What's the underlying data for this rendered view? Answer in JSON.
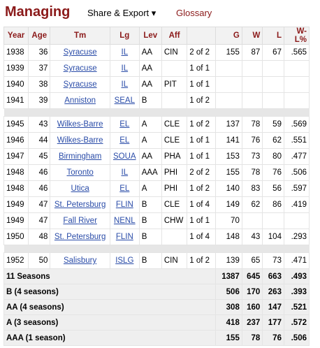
{
  "header": {
    "title": "Managing",
    "share_label": "Share & Export ▾",
    "glossary_label": "Glossary"
  },
  "columns": [
    "Year",
    "Age",
    "Tm",
    "Lg",
    "Lev",
    "Aff",
    "",
    "G",
    "W",
    "L",
    "W-L%"
  ],
  "rows": [
    [
      "1938",
      "36",
      "Syracuse",
      "IL",
      "AA",
      "CIN",
      "2 of 2",
      "155",
      "87",
      "67",
      ".565"
    ],
    [
      "1939",
      "37",
      "Syracuse",
      "IL",
      "AA",
      "",
      "1 of 1",
      "",
      "",
      "",
      ""
    ],
    [
      "1940",
      "38",
      "Syracuse",
      "IL",
      "AA",
      "PIT",
      "1 of 1",
      "",
      "",
      "",
      ""
    ],
    [
      "1941",
      "39",
      "Anniston",
      "SEAL",
      "B",
      "",
      "1 of 2",
      "",
      "",
      "",
      ""
    ],
    null,
    [
      "1945",
      "43",
      "Wilkes-Barre",
      "EL",
      "A",
      "CLE",
      "1 of 2",
      "137",
      "78",
      "59",
      ".569"
    ],
    [
      "1946",
      "44",
      "Wilkes-Barre",
      "EL",
      "A",
      "CLE",
      "1 of 1",
      "141",
      "76",
      "62",
      ".551"
    ],
    [
      "1947",
      "45",
      "Birmingham",
      "SOUA",
      "AA",
      "PHA",
      "1 of 1",
      "153",
      "73",
      "80",
      ".477"
    ],
    [
      "1948",
      "46",
      "Toronto",
      "IL",
      "AAA",
      "PHI",
      "2 of 2",
      "155",
      "78",
      "76",
      ".506"
    ],
    [
      "1948",
      "46",
      "Utica",
      "EL",
      "A",
      "PHI",
      "1 of 2",
      "140",
      "83",
      "56",
      ".597"
    ],
    [
      "1949",
      "47",
      "St. Petersburg",
      "FLIN",
      "B",
      "CLE",
      "1 of 4",
      "149",
      "62",
      "86",
      ".419"
    ],
    [
      "1949",
      "47",
      "Fall River",
      "NENL",
      "B",
      "CHW",
      "1 of 1",
      "70",
      "",
      "",
      ""
    ],
    [
      "1950",
      "48",
      "St. Petersburg",
      "FLIN",
      "B",
      "",
      "1 of 4",
      "148",
      "43",
      "104",
      ".293"
    ],
    null,
    [
      "1952",
      "50",
      "Salisbury",
      "ISLG",
      "B",
      "CIN",
      "1 of 2",
      "139",
      "65",
      "73",
      ".471"
    ]
  ],
  "summary": [
    [
      "11 Seasons",
      "1387",
      "645",
      "663",
      ".493"
    ],
    [
      "B (4 seasons)",
      "506",
      "170",
      "263",
      ".393"
    ],
    [
      "AA (4 seasons)",
      "308",
      "160",
      "147",
      ".521"
    ],
    [
      "A (3 seasons)",
      "418",
      "237",
      "177",
      ".572"
    ],
    [
      "AAA (1 season)",
      "155",
      "78",
      "76",
      ".506"
    ]
  ]
}
